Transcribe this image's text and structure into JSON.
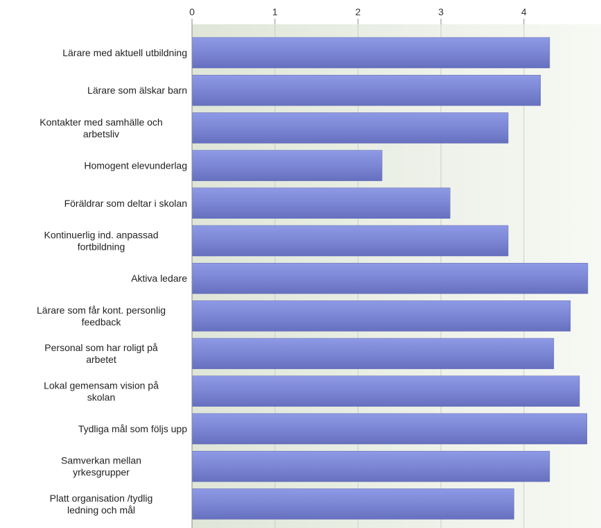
{
  "chart_data": {
    "type": "bar",
    "orientation": "horizontal",
    "title": "",
    "xlabel": "",
    "ylabel": "",
    "xlim": [
      0,
      4.78
    ],
    "ticks": [
      "0",
      "1",
      "2",
      "3",
      "4"
    ],
    "tick_values": [
      0,
      1,
      2,
      3,
      4
    ],
    "grid": true,
    "legend": "none",
    "colors": {
      "bar_light": "#8f9ae6",
      "bar_mid": "#7d88d6",
      "bar_dark": "#6670bf",
      "bar_edge": "#5a63ad",
      "plot_bg_left": "#dfe6d8",
      "plot_bg_right": "#f7f9f4",
      "grid": "#c9d0c2",
      "axis": "#8a8a8a"
    },
    "categories": [
      [
        "Lärare med aktuell utbildning"
      ],
      [
        "Lärare som älskar barn"
      ],
      [
        "Kontakter med samhälle och",
        "arbetsliv"
      ],
      [
        "Homogent elevunderlag"
      ],
      [
        "Föräldrar som deltar i skolan"
      ],
      [
        "Kontinuerlig ind. anpassad",
        "fortbildning"
      ],
      [
        "Aktiva ledare"
      ],
      [
        "Lärare som får kont. personlig",
        "feedback"
      ],
      [
        "Personal som har roligt på",
        "arbetet"
      ],
      [
        "Lokal gemensam vision på",
        "skolan"
      ],
      [
        "Tydliga mål som följs upp"
      ],
      [
        "Samverkan mellan",
        "yrkesgrupper"
      ],
      [
        "Platt organisation /tydlig",
        "ledning och mål"
      ]
    ],
    "values": [
      4.31,
      4.2,
      3.81,
      2.29,
      3.11,
      3.81,
      4.77,
      4.56,
      4.36,
      4.67,
      4.76,
      4.31,
      3.88
    ]
  }
}
